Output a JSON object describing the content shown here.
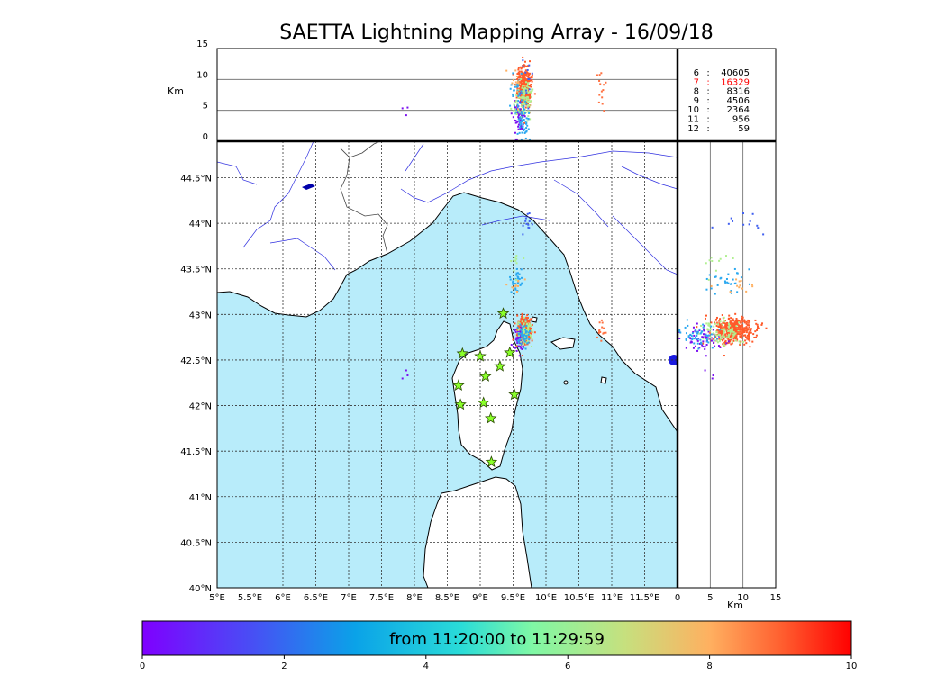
{
  "chart_data": {
    "type": "scatter",
    "title": "SAETTA Lightning Mapping Array - 16/09/18",
    "top_panel": {
      "ylabel": "Km",
      "yticks": [
        "0",
        "5",
        "10",
        "15"
      ],
      "ylim": [
        0,
        15
      ],
      "gridlines_y": [
        5,
        10
      ]
    },
    "map_panel": {
      "xlim": [
        5.0,
        12.0
      ],
      "ylim": [
        40.0,
        44.9
      ],
      "xticks": [
        {
          "v": 5.0,
          "label": "5°E"
        },
        {
          "v": 5.5,
          "label": "5.5°E"
        },
        {
          "v": 6.0,
          "label": "6°E"
        },
        {
          "v": 6.5,
          "label": "6.5°E"
        },
        {
          "v": 7.0,
          "label": "7°E"
        },
        {
          "v": 7.5,
          "label": "7.5°E"
        },
        {
          "v": 8.0,
          "label": "8°E"
        },
        {
          "v": 8.5,
          "label": "8.5°E"
        },
        {
          "v": 9.0,
          "label": "9°E"
        },
        {
          "v": 9.5,
          "label": "9.5°E"
        },
        {
          "v": 10.0,
          "label": "10°E"
        },
        {
          "v": 10.5,
          "label": "10.5°E"
        },
        {
          "v": 11.0,
          "label": "11°E"
        },
        {
          "v": 11.5,
          "label": "11.5°E"
        }
      ],
      "yticks": [
        {
          "v": 40.0,
          "label": "40°N"
        },
        {
          "v": 40.5,
          "label": "40.5°N"
        },
        {
          "v": 41.0,
          "label": "41°N"
        },
        {
          "v": 41.5,
          "label": "41.5°N"
        },
        {
          "v": 42.0,
          "label": "42°N"
        },
        {
          "v": 42.5,
          "label": "42.5°N"
        },
        {
          "v": 43.0,
          "label": "43°N"
        },
        {
          "v": 43.5,
          "label": "43.5°N"
        },
        {
          "v": 44.0,
          "label": "44°N"
        },
        {
          "v": 44.5,
          "label": "44.5°N"
        }
      ],
      "grid": true
    },
    "side_panel": {
      "xlabel": "Km",
      "xticks": [
        "0",
        "5",
        "10",
        "15"
      ],
      "xlim": [
        0,
        15
      ],
      "gridlines_x": [
        5,
        10
      ]
    },
    "station_counts": [
      {
        "station": "6",
        "count": "40605",
        "color": "#000000"
      },
      {
        "station": "7",
        "count": "16329",
        "color": "#ff0000"
      },
      {
        "station": "8",
        "count": "8316",
        "color": "#000000"
      },
      {
        "station": "9",
        "count": "4506",
        "color": "#000000"
      },
      {
        "station": "10",
        "count": "2364",
        "color": "#000000"
      },
      {
        "station": "11",
        "count": "956",
        "color": "#000000"
      },
      {
        "station": "12",
        "count": "59",
        "color": "#000000"
      }
    ],
    "stations": [
      [
        9.35,
        43.01
      ],
      [
        8.73,
        42.57
      ],
      [
        9.0,
        42.54
      ],
      [
        9.45,
        42.58
      ],
      [
        9.3,
        42.43
      ],
      [
        9.08,
        42.32
      ],
      [
        8.67,
        42.22
      ],
      [
        9.52,
        42.12
      ],
      [
        8.7,
        42.01
      ],
      [
        9.05,
        42.03
      ],
      [
        9.16,
        41.86
      ],
      [
        9.17,
        41.38
      ]
    ],
    "clusters": [
      {
        "lon": 9.67,
        "lat": 42.83,
        "alt": 8.5,
        "color": "#ff5a2a",
        "n": 420
      },
      {
        "lon": 9.6,
        "lat": 42.75,
        "alt": 4.0,
        "color": "#7a10f0",
        "n": 60
      },
      {
        "lon": 9.68,
        "lat": 42.8,
        "alt": 6.5,
        "color": "#b0f090",
        "n": 90
      },
      {
        "lon": 9.65,
        "lat": 42.78,
        "alt": 3.0,
        "color": "#2aa8f0",
        "n": 50
      },
      {
        "lon": 9.55,
        "lat": 43.38,
        "alt": 7.5,
        "color": "#2aa8f0",
        "n": 30
      },
      {
        "lon": 9.55,
        "lat": 43.3,
        "alt": 9.0,
        "color": "#ffb060",
        "n": 12
      },
      {
        "lon": 9.57,
        "lat": 43.6,
        "alt": 6.0,
        "color": "#b0f090",
        "n": 10
      },
      {
        "lon": 9.71,
        "lat": 43.99,
        "alt": 9.5,
        "color": "#4060f0",
        "n": 12
      },
      {
        "lon": 10.85,
        "lat": 42.83,
        "alt": 8.5,
        "color": "#ff7040",
        "n": 14
      },
      {
        "lon": 7.9,
        "lat": 42.3,
        "alt": 5.0,
        "color": "#7a10f0",
        "n": 3
      }
    ],
    "colorbar": {
      "range": [
        0,
        10
      ],
      "ticks": [
        "0",
        "2",
        "4",
        "6",
        "8",
        "10"
      ],
      "label": "from 11:20:00 to 11:29:59",
      "colormap": "rainbow"
    }
  }
}
